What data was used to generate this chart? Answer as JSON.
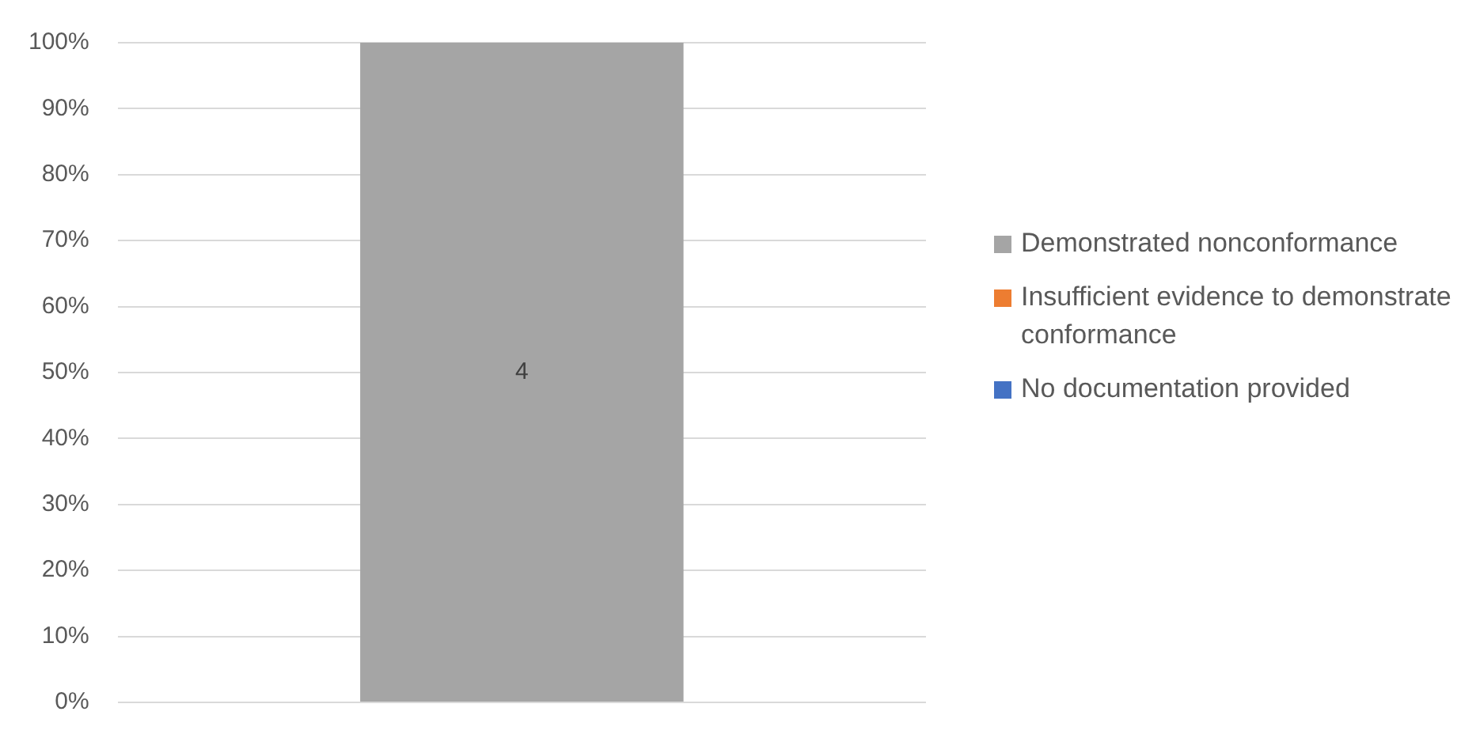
{
  "chart_data": {
    "type": "bar",
    "stacked": true,
    "categories": [
      null
    ],
    "series": [
      {
        "name": "No documentation provided",
        "color": "#4472c4",
        "values": [
          0
        ]
      },
      {
        "name": "Insufficient evidence to demonstrate conformance",
        "color": "#ed7d31",
        "values": [
          0
        ]
      },
      {
        "name": "Demonstrated nonconformance",
        "color": "#a5a5a5",
        "values": [
          100
        ]
      }
    ],
    "ylim": [
      0,
      100
    ],
    "yticks": [
      {
        "value": 0,
        "label": "0%"
      },
      {
        "value": 10,
        "label": "10%"
      },
      {
        "value": 20,
        "label": "20%"
      },
      {
        "value": 30,
        "label": "30%"
      },
      {
        "value": 40,
        "label": "40%"
      },
      {
        "value": 50,
        "label": "50%"
      },
      {
        "value": 60,
        "label": "60%"
      },
      {
        "value": 70,
        "label": "70%"
      },
      {
        "value": 80,
        "label": "80%"
      },
      {
        "value": 90,
        "label": "90%"
      },
      {
        "value": 100,
        "label": "100%"
      }
    ],
    "annotations": [
      "4"
    ],
    "grid": "y",
    "legend": "right"
  }
}
